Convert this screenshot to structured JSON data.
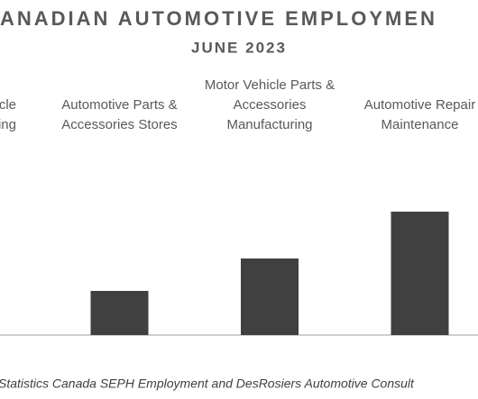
{
  "chart_data": {
    "type": "bar",
    "title": "ANADIAN AUTOMOTIVE EMPLOYMEN",
    "subtitle": "JUNE 2023",
    "categories": [
      [
        "cle",
        "ing"
      ],
      [
        "Automotive Parts &",
        "Accessories Stores"
      ],
      [
        "Motor Vehicle Parts &",
        "Accessories",
        "Manufacturing"
      ],
      [
        "Automotive Repair",
        "Maintenance"
      ]
    ],
    "values": [
      null,
      49,
      85,
      137
    ],
    "color": "#404040",
    "ylim": [
      0,
      200
    ],
    "source": "Statistics Canada SEPH Employment and DesRosiers Automotive Consult"
  }
}
